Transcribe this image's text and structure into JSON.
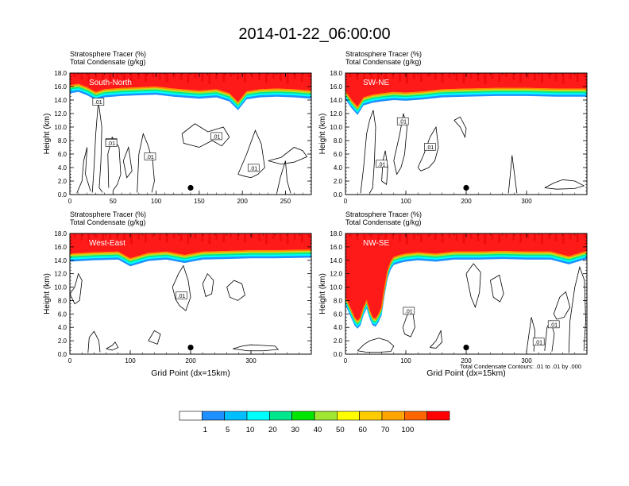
{
  "figure": {
    "title": "2014-01-22_06:00:00",
    "contour_note": "Total Condensate Contours: .01 to .01 by .000"
  },
  "colors": {
    "tracer_fill": "#ff1a1a",
    "tracer_fill_dark": "#e80000",
    "condensate_line": "#000000"
  },
  "chart_data": [
    {
      "type": "heatmap",
      "panel_label": "South-North",
      "header_lines": [
        "Stratosphere Tracer   (%)",
        "Total Condensate   (g/kg)"
      ],
      "ylabel": "Height (km)",
      "xlabel": "",
      "xlim": [
        0,
        280
      ],
      "ylim": [
        0,
        18
      ],
      "x_ticks": [
        0,
        50,
        100,
        150,
        200,
        250
      ],
      "y_ticks": [
        "0.0",
        "2.0",
        "4.0",
        "6.0",
        "8.0",
        "10.0",
        "12.0",
        "14.0",
        "16.0",
        "18.0"
      ],
      "tracer_front": {
        "x": [
          0,
          10,
          20,
          30,
          40,
          60,
          80,
          100,
          120,
          150,
          170,
          185,
          195,
          205,
          220,
          240,
          260,
          280
        ],
        "y": [
          16.2,
          16.4,
          15.9,
          15.2,
          15.6,
          15.8,
          15.9,
          16.0,
          15.7,
          15.4,
          15.6,
          15.0,
          13.7,
          15.3,
          15.6,
          15.7,
          15.6,
          15.4
        ]
      },
      "contour_labels": [
        {
          "text": ".01",
          "x": 33,
          "y": 13.7
        },
        {
          "text": ".01",
          "x": 48,
          "y": 7.7
        },
        {
          "text": ".01",
          "x": 48,
          "y": 7.6
        },
        {
          "text": ".01",
          "x": 93,
          "y": 5.6
        },
        {
          "text": ".01",
          "x": 170,
          "y": 8.6
        },
        {
          "text": ".01",
          "x": 213,
          "y": 3.9
        }
      ],
      "marker": {
        "x": 140,
        "y": 1.0
      }
    },
    {
      "type": "heatmap",
      "panel_label": "SW-NE",
      "header_lines": [
        "Stratosphere Tracer   (%)",
        "Total Condensate   (g/kg)"
      ],
      "ylabel": "Height (km)",
      "xlabel": "",
      "xlim": [
        0,
        400
      ],
      "ylim": [
        0,
        18
      ],
      "x_ticks": [
        0,
        100,
        200,
        300
      ],
      "y_ticks": [
        "0.0",
        "2.0",
        "4.0",
        "6.0",
        "8.0",
        "10.0",
        "12.0",
        "14.0",
        "16.0",
        "18.0"
      ],
      "tracer_front": {
        "x": [
          0,
          10,
          20,
          30,
          45,
          60,
          80,
          100,
          130,
          160,
          200,
          250,
          300,
          350,
          400
        ],
        "y": [
          15.3,
          14.0,
          13.0,
          14.4,
          14.8,
          15.0,
          15.2,
          15.1,
          15.3,
          15.6,
          15.7,
          15.8,
          15.8,
          15.7,
          15.7
        ]
      },
      "contour_labels": [
        {
          "text": ".01",
          "x": 95,
          "y": 10.8
        },
        {
          "text": ".01",
          "x": 140,
          "y": 7.0
        },
        {
          "text": ".01",
          "x": 60,
          "y": 4.5
        }
      ],
      "marker": {
        "x": 200,
        "y": 1.0
      }
    },
    {
      "type": "heatmap",
      "panel_label": "West-East",
      "header_lines": [
        "Stratosphere Tracer   (%)",
        "Total Condensate   (g/kg)"
      ],
      "ylabel": "Height (km)",
      "xlabel": "Grid Point (dx=15km)",
      "xlim": [
        0,
        400
      ],
      "ylim": [
        0,
        18
      ],
      "x_ticks": [
        0,
        100,
        200,
        300
      ],
      "y_ticks": [
        "0.0",
        "2.0",
        "4.0",
        "6.0",
        "8.0",
        "10.0",
        "12.0",
        "14.0",
        "16.0",
        "18.0"
      ],
      "tracer_front": {
        "x": [
          0,
          40,
          80,
          100,
          130,
          160,
          190,
          220,
          260,
          300,
          340,
          400
        ],
        "y": [
          15.0,
          15.2,
          15.3,
          14.3,
          15.1,
          15.3,
          14.8,
          15.3,
          15.4,
          15.5,
          15.5,
          15.6
        ]
      },
      "contour_labels": [
        {
          "text": ".01",
          "x": 185,
          "y": 8.7
        }
      ],
      "marker": {
        "x": 200,
        "y": 1.0
      }
    },
    {
      "type": "heatmap",
      "panel_label": "NW-SE",
      "header_lines": [
        "Stratosphere Tracer   (%)",
        "Total Condensate   (g/kg)"
      ],
      "ylabel": "Height (km)",
      "xlabel": "Grid Point (dx=15km)",
      "xlim": [
        0,
        400
      ],
      "ylim": [
        0,
        18
      ],
      "x_ticks": [
        0,
        100,
        200,
        300
      ],
      "y_ticks": [
        "0.0",
        "2.0",
        "4.0",
        "6.0",
        "8.0",
        "10.0",
        "12.0",
        "14.0",
        "16.0",
        "18.0"
      ],
      "tracer_front": {
        "x": [
          0,
          5,
          10,
          15,
          20,
          25,
          30,
          35,
          40,
          45,
          50,
          55,
          60,
          65,
          70,
          75,
          80,
          90,
          100,
          120,
          150,
          180,
          220,
          260,
          300,
          340,
          370,
          400
        ],
        "y": [
          8.5,
          7.5,
          6.5,
          5.5,
          5.0,
          5.5,
          7.0,
          8.0,
          6.5,
          5.5,
          5.3,
          6.0,
          7.0,
          10.0,
          12.5,
          13.8,
          14.5,
          14.8,
          15.0,
          15.2,
          15.0,
          15.3,
          15.3,
          15.4,
          15.3,
          15.3,
          14.6,
          15.4
        ]
      },
      "contour_labels": [
        {
          "text": ".01",
          "x": 105,
          "y": 6.4
        },
        {
          "text": ".01",
          "x": 345,
          "y": 4.4
        },
        {
          "text": ".01",
          "x": 320,
          "y": 1.8
        }
      ],
      "marker": {
        "x": 200,
        "y": 1.0
      }
    }
  ],
  "colorbar": {
    "labels": [
      "1",
      "5",
      "10",
      "20",
      "30",
      "40",
      "50",
      "60",
      "70",
      "100"
    ],
    "colors": [
      "#ffffff",
      "#1e90ff",
      "#00bfff",
      "#00ffff",
      "#00e68c",
      "#00e600",
      "#a0e632",
      "#ffff00",
      "#ffcc00",
      "#ffa500",
      "#ff6600",
      "#ff0000"
    ]
  }
}
